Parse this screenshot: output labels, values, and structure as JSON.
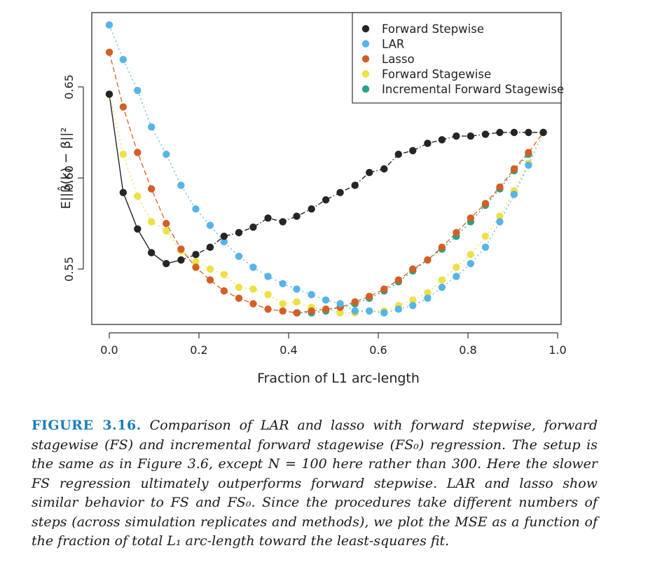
{
  "chart_data": {
    "type": "scatter",
    "xlabel": "Fraction of L1 arc-length",
    "ylabel": "E||β̂(k) − β||²",
    "xlim": [
      0.0,
      1.0
    ],
    "ylim": [
      0.523,
      0.69
    ],
    "xticks": [
      "0.0",
      "0.2",
      "0.4",
      "0.6",
      "0.8",
      "1.0"
    ],
    "xtick_values": [
      0.0,
      0.2,
      0.4,
      0.6,
      0.8,
      1.0
    ],
    "yticks": [
      "0.55",
      "0.60",
      "0.65"
    ],
    "ytick_values": [
      0.55,
      0.6,
      0.65
    ],
    "grid": false,
    "legend_position": "top-right",
    "series": [
      {
        "name": "Forward Stepwise",
        "color": "#252525",
        "line": "solid-then-dashdot",
        "x": [
          0.0,
          0.031,
          0.063,
          0.094,
          0.127,
          0.16,
          0.193,
          0.225,
          0.256,
          0.289,
          0.321,
          0.354,
          0.387,
          0.418,
          0.451,
          0.483,
          0.515,
          0.548,
          0.58,
          0.613,
          0.645,
          0.677,
          0.71,
          0.742,
          0.774,
          0.806,
          0.839,
          0.871,
          0.903,
          0.935,
          0.968
        ],
        "y": [
          0.646,
          0.592,
          0.572,
          0.559,
          0.553,
          0.555,
          0.558,
          0.562,
          0.568,
          0.57,
          0.573,
          0.578,
          0.576,
          0.579,
          0.583,
          0.588,
          0.592,
          0.596,
          0.603,
          0.605,
          0.613,
          0.615,
          0.619,
          0.621,
          0.623,
          0.623,
          0.624,
          0.625,
          0.625,
          0.625,
          0.625
        ]
      },
      {
        "name": "LAR",
        "color": "#56b4e9",
        "line": "dotted",
        "x": [
          0.0,
          0.031,
          0.063,
          0.094,
          0.127,
          0.16,
          0.193,
          0.225,
          0.256,
          0.289,
          0.321,
          0.354,
          0.387,
          0.418,
          0.451,
          0.483,
          0.515,
          0.548,
          0.58,
          0.613,
          0.645,
          0.677,
          0.71,
          0.742,
          0.774,
          0.806,
          0.839,
          0.871,
          0.903,
          0.935,
          0.968
        ],
        "y": [
          0.684,
          0.665,
          0.648,
          0.628,
          0.613,
          0.596,
          0.583,
          0.574,
          0.565,
          0.557,
          0.551,
          0.546,
          0.542,
          0.539,
          0.536,
          0.533,
          0.531,
          0.527,
          0.527,
          0.526,
          0.528,
          0.53,
          0.534,
          0.54,
          0.546,
          0.553,
          0.562,
          0.576,
          0.591,
          0.607,
          0.625
        ]
      },
      {
        "name": "Lasso",
        "color": "#d55e26",
        "line": "dashed",
        "x": [
          0.0,
          0.031,
          0.063,
          0.094,
          0.127,
          0.16,
          0.193,
          0.225,
          0.256,
          0.289,
          0.321,
          0.354,
          0.387,
          0.418,
          0.451,
          0.483,
          0.515,
          0.548,
          0.58,
          0.613,
          0.645,
          0.677,
          0.71,
          0.742,
          0.774,
          0.806,
          0.839,
          0.871,
          0.903,
          0.935,
          0.968
        ],
        "y": [
          0.669,
          0.639,
          0.614,
          0.594,
          0.575,
          0.561,
          0.551,
          0.544,
          0.538,
          0.534,
          0.531,
          0.528,
          0.527,
          0.526,
          0.527,
          0.528,
          0.529,
          0.532,
          0.535,
          0.539,
          0.544,
          0.55,
          0.555,
          0.562,
          0.57,
          0.578,
          0.586,
          0.595,
          0.605,
          0.614,
          0.625
        ]
      },
      {
        "name": "Forward Stagewise",
        "color": "#ede145",
        "line": "dotted",
        "x": [
          0.0,
          0.031,
          0.063,
          0.094,
          0.127,
          0.16,
          0.193,
          0.225,
          0.256,
          0.289,
          0.321,
          0.354,
          0.387,
          0.418,
          0.451,
          0.483,
          0.515,
          0.548,
          0.58,
          0.613,
          0.645,
          0.677,
          0.71,
          0.742,
          0.774,
          0.806,
          0.839,
          0.871,
          0.903,
          0.935,
          0.968
        ],
        "y": [
          0.646,
          0.613,
          0.59,
          0.576,
          0.571,
          0.56,
          0.554,
          0.55,
          0.547,
          0.54,
          0.539,
          0.536,
          0.531,
          0.532,
          0.529,
          0.528,
          0.526,
          0.526,
          0.527,
          0.527,
          0.53,
          0.533,
          0.537,
          0.544,
          0.551,
          0.558,
          0.568,
          0.579,
          0.593,
          0.608,
          0.625
        ]
      },
      {
        "name": "Incremental Forward Stagewise",
        "color": "#2aa085",
        "line": "dotted",
        "x": [
          0.419,
          0.451,
          0.483,
          0.515,
          0.548,
          0.58,
          0.613,
          0.645,
          0.677,
          0.71,
          0.742,
          0.774,
          0.806,
          0.839,
          0.871,
          0.903,
          0.935
        ],
        "y": [
          0.526,
          0.526,
          0.527,
          0.529,
          0.531,
          0.534,
          0.538,
          0.543,
          0.549,
          0.555,
          0.561,
          0.568,
          0.576,
          0.585,
          0.594,
          0.604,
          0.613
        ]
      }
    ]
  },
  "caption": {
    "label": "FIGURE 3.16.",
    "text": "Comparison of LAR and lasso with forward stepwise, forward stagewise (FS) and incremental forward stagewise (FS₀) regression. The setup is the same as in Figure 3.6, except N = 100 here rather than 300. Here the slower FS regression ultimately outperforms forward stepwise. LAR and lasso show similar behavior to FS and FS₀. Since the procedures take different numbers of steps (across simulation replicates and methods), we plot the MSE as a function of the fraction of total L₁ arc-length toward the least-squares fit."
  }
}
